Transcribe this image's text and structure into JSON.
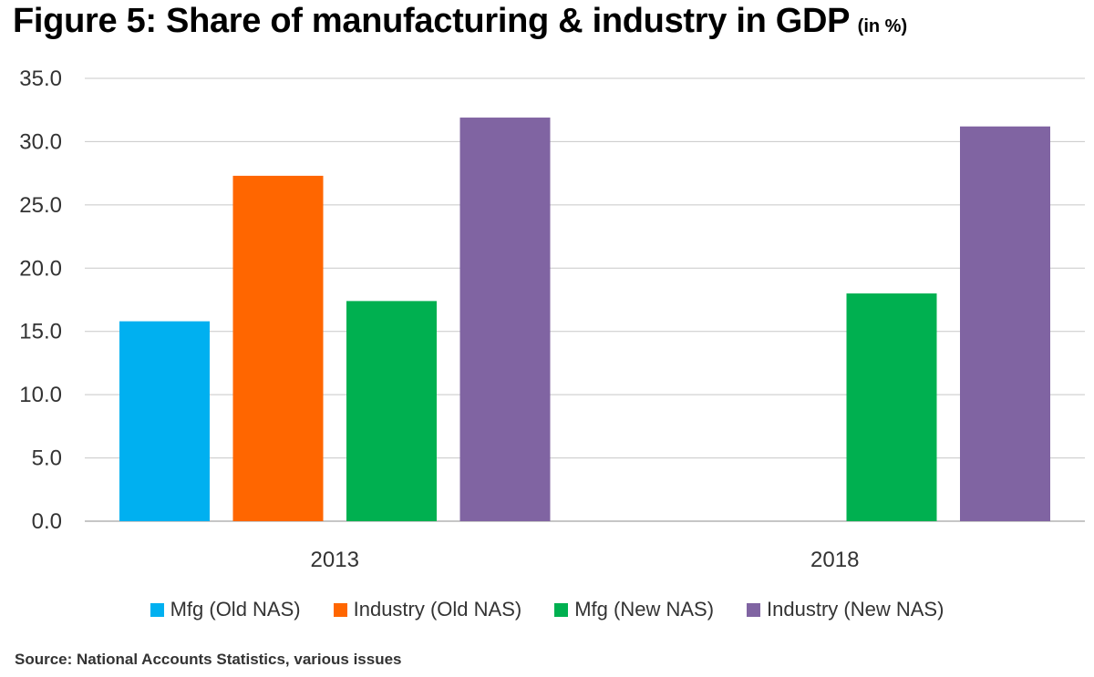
{
  "title": "Figure 5: Share of manufacturing & industry in GDP",
  "title_unit": "(in %)",
  "source": "Source: National Accounts Statistics, various issues",
  "chart_data": {
    "type": "bar",
    "categories": [
      "2013",
      "2018"
    ],
    "series": [
      {
        "name": "Mfg (Old NAS)",
        "color": "#00B0F0",
        "values": [
          15.8,
          null
        ]
      },
      {
        "name": "Industry (Old NAS)",
        "color": "#FF6600",
        "values": [
          27.3,
          null
        ]
      },
      {
        "name": "Mfg (New NAS)",
        "color": "#00B050",
        "values": [
          17.4,
          18.0
        ]
      },
      {
        "name": "Industry (New NAS)",
        "color": "#8064A2",
        "values": [
          31.9,
          31.2
        ]
      }
    ],
    "ylim": [
      0,
      35
    ],
    "yticks": [
      "0.0",
      "5.0",
      "10.0",
      "15.0",
      "20.0",
      "25.0",
      "30.0",
      "35.0"
    ],
    "grid": true,
    "legend_position": "bottom"
  }
}
